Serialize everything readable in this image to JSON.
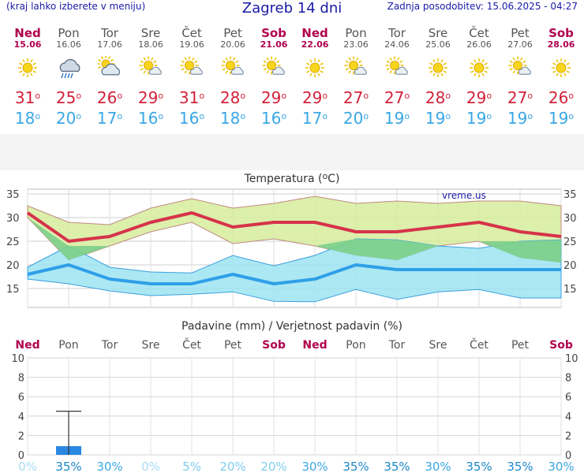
{
  "header": {
    "left_note": "(kraj lahko izberete v meniju)",
    "title": "Zagreb 14 dni",
    "updated": "Zadnja posodobitev: 15.06.2025 - 04:27"
  },
  "days": [
    {
      "name": "Ned",
      "date": "15.06",
      "weekend": true,
      "icon": "sun-icon",
      "tmax": "31",
      "tmin": "18",
      "rain_prob": "0%",
      "rain_mm": 0
    },
    {
      "name": "Pon",
      "date": "16.06",
      "weekend": false,
      "icon": "rain-cloud-icon",
      "tmax": "25",
      "tmin": "20",
      "rain_prob": "35%",
      "rain_mm": 0.9
    },
    {
      "name": "Tor",
      "date": "17.06",
      "weekend": false,
      "icon": "sun-cloud-icon",
      "tmax": "26",
      "tmin": "17",
      "rain_prob": "30%",
      "rain_mm": 0
    },
    {
      "name": "Sre",
      "date": "18.06",
      "weekend": false,
      "icon": "sun-small-cloud-icon",
      "tmax": "29",
      "tmin": "16",
      "rain_prob": "0%",
      "rain_mm": 0
    },
    {
      "name": "Čet",
      "date": "19.06",
      "weekend": false,
      "icon": "sun-small-cloud-icon",
      "tmax": "31",
      "tmin": "16",
      "rain_prob": "5%",
      "rain_mm": 0
    },
    {
      "name": "Pet",
      "date": "20.06",
      "weekend": false,
      "icon": "sun-small-cloud-icon",
      "tmax": "28",
      "tmin": "18",
      "rain_prob": "20%",
      "rain_mm": 0
    },
    {
      "name": "Sob",
      "date": "21.06",
      "weekend": true,
      "icon": "sun-small-cloud-icon",
      "tmax": "29",
      "tmin": "16",
      "rain_prob": "20%",
      "rain_mm": 0
    },
    {
      "name": "Ned",
      "date": "22.06",
      "weekend": true,
      "icon": "sun-icon",
      "tmax": "29",
      "tmin": "17",
      "rain_prob": "30%",
      "rain_mm": 0
    },
    {
      "name": "Pon",
      "date": "23.06",
      "weekend": false,
      "icon": "sun-small-cloud-icon",
      "tmax": "27",
      "tmin": "20",
      "rain_prob": "35%",
      "rain_mm": 0
    },
    {
      "name": "Tor",
      "date": "24.06",
      "weekend": false,
      "icon": "sun-small-cloud-icon",
      "tmax": "27",
      "tmin": "19",
      "rain_prob": "35%",
      "rain_mm": 0
    },
    {
      "name": "Sre",
      "date": "25.06",
      "weekend": false,
      "icon": "sun-icon",
      "tmax": "28",
      "tmin": "19",
      "rain_prob": "30%",
      "rain_mm": 0
    },
    {
      "name": "Čet",
      "date": "26.06",
      "weekend": false,
      "icon": "sun-icon",
      "tmax": "29",
      "tmin": "19",
      "rain_prob": "35%",
      "rain_mm": 0
    },
    {
      "name": "Pet",
      "date": "27.06",
      "weekend": false,
      "icon": "sun-small-cloud-icon",
      "tmax": "27",
      "tmin": "19",
      "rain_prob": "35%",
      "rain_mm": 0
    },
    {
      "name": "Sob",
      "date": "28.06",
      "weekend": true,
      "icon": "sun-icon",
      "tmax": "26",
      "tmin": "19",
      "rain_prob": "30%",
      "rain_mm": 0
    }
  ],
  "colors": {
    "weekend": "#b0004e",
    "max_line": "#d6334a",
    "min_line": "#2f9fe8",
    "max_band": "#d6ec9c",
    "min_band": "#9ee4f1",
    "overlap": "#7ccf8a",
    "rain_bar": "#2a88e0"
  },
  "chart_data": [
    {
      "type": "line",
      "title": "Temperatura (°C)",
      "title_main": "Temperatura (",
      "title_unit": "o",
      "title_tail": "C)",
      "watermark": "vreme.us",
      "ylim": [
        11,
        36
      ],
      "yticks": [
        15,
        20,
        25,
        30,
        35
      ],
      "grid": true,
      "series": [
        {
          "name": "max",
          "values": [
            31,
            25,
            26,
            29,
            31,
            28,
            29,
            29,
            27,
            27,
            28,
            29,
            27,
            26
          ]
        },
        {
          "name": "min",
          "values": [
            18,
            20,
            17,
            16,
            16,
            18,
            16,
            17,
            20,
            19,
            19,
            19,
            19,
            19
          ]
        },
        {
          "name": "max_upper",
          "values": [
            32.5,
            29,
            28.5,
            32,
            34,
            32,
            33,
            34.5,
            33,
            33.5,
            33,
            33.5,
            33.5,
            32.5
          ]
        },
        {
          "name": "max_lower",
          "values": [
            30,
            21,
            24,
            27,
            29,
            24.5,
            25.5,
            24,
            22,
            21,
            24,
            25,
            21.5,
            20.5
          ]
        },
        {
          "name": "min_upper",
          "values": [
            19.5,
            24,
            19.5,
            18.5,
            18.3,
            22,
            19.8,
            22,
            25.5,
            25.3,
            24,
            23.5,
            25,
            25.3
          ]
        },
        {
          "name": "min_lower",
          "values": [
            17,
            16,
            14.5,
            13.5,
            13.8,
            14.3,
            12.3,
            12.2,
            14.8,
            12.7,
            14.3,
            14.8,
            13,
            13
          ]
        }
      ]
    },
    {
      "type": "bar",
      "title": "Padavine (mm) / Verjetnost padavin (%)",
      "ylim": [
        0,
        10
      ],
      "yticks": [
        0,
        2,
        4,
        6,
        8,
        10
      ],
      "values": [
        0,
        0.9,
        0,
        0,
        0,
        0,
        0,
        0,
        0,
        0,
        0,
        0,
        0,
        0
      ],
      "error_high": [
        null,
        4.5,
        null,
        null,
        null,
        null,
        null,
        null,
        null,
        null,
        null,
        null,
        null,
        null
      ],
      "grid": true
    }
  ]
}
